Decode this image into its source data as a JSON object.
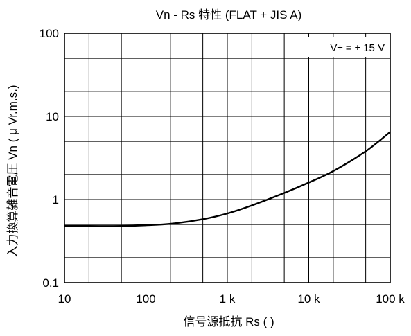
{
  "title": "Vn - Rs 特性 (FLAT + JIS A)",
  "chart_data": {
    "type": "line",
    "title": "Vn - Rs 特性 (FLAT + JIS A)",
    "xlabel": "信号源抵抗 Rs ( )",
    "ylabel": "入力換算雑音電圧 Vn ( μ Vr.m.s.)",
    "xscale": "log",
    "yscale": "log",
    "xlim": [
      10,
      100000
    ],
    "ylim": [
      0.1,
      100
    ],
    "x_ticks": [
      10,
      100,
      1000,
      10000,
      100000
    ],
    "x_tick_labels": [
      "10",
      "100",
      "1 k",
      "10 k",
      "100 k"
    ],
    "y_ticks": [
      0.1,
      1,
      10,
      100
    ],
    "y_tick_labels": [
      "0.1",
      "1",
      "10",
      "100"
    ],
    "grid": true,
    "annotation": "V± = ± 15 V",
    "series": [
      {
        "color": "#000000",
        "x": [
          10,
          20,
          50,
          100,
          200,
          500,
          1000,
          2000,
          5000,
          10000,
          20000,
          50000,
          100000
        ],
        "y": [
          0.48,
          0.48,
          0.48,
          0.49,
          0.51,
          0.58,
          0.68,
          0.85,
          1.2,
          1.6,
          2.2,
          3.8,
          6.5
        ]
      }
    ]
  }
}
